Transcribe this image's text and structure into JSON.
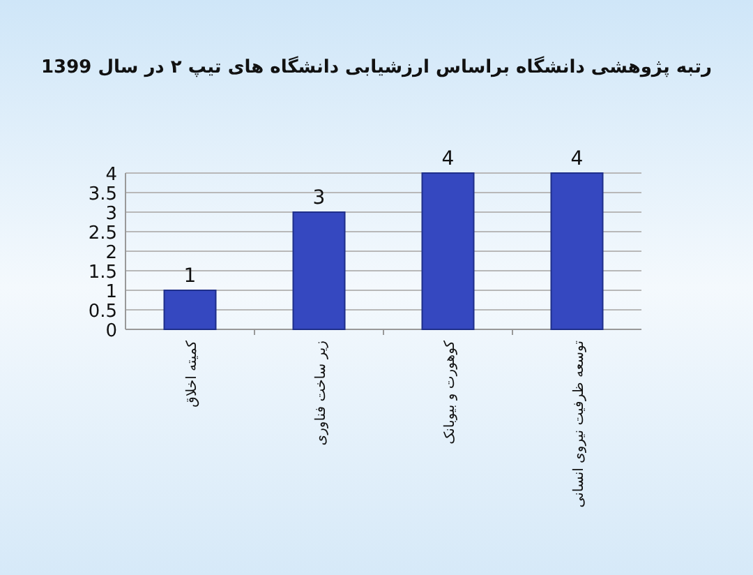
{
  "chart_data": {
    "type": "bar",
    "title": "رتبه پژوهشی دانشگاه براساس ارزشیابی دانشگاه های تیپ ۲ در سال 1399",
    "categories": [
      "کمیته اخلاق",
      "زیر ساخت فناوری",
      "کوهورت و بیوبانک",
      "توسعه ظرفیت نیروی انسانی"
    ],
    "values": [
      1,
      3,
      4,
      4
    ],
    "color": "#3548c0",
    "ylim": [
      0,
      4
    ],
    "yticks": [
      0,
      0.5,
      1,
      1.5,
      2,
      2.5,
      3,
      3.5,
      4
    ],
    "grid": "y",
    "data_labels": true
  }
}
